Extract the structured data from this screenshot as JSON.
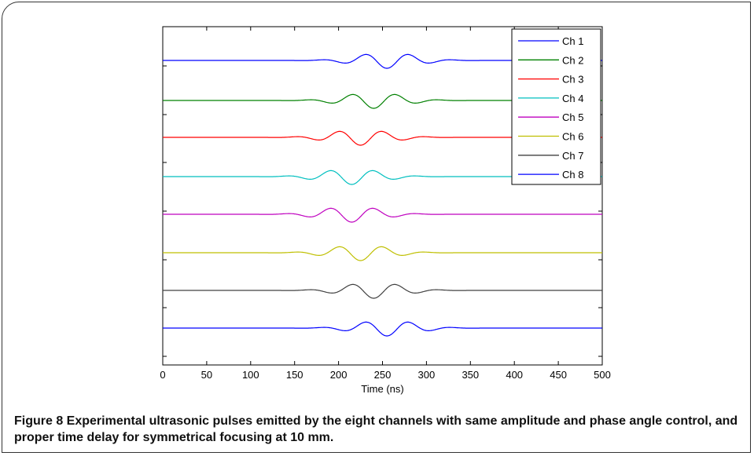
{
  "chart_data": {
    "type": "line",
    "xlabel": "Time (ns)",
    "xlim": [
      0,
      500
    ],
    "x_ticks": [
      "0",
      "50",
      "100",
      "150",
      "200",
      "250",
      "300",
      "350",
      "400",
      "450",
      "500"
    ],
    "y_ticks_labeled": false,
    "grid": false,
    "legend_placement": "top-right",
    "pulse_shape": "Gaussian-windowed sinusoid, ~20 MHz center frequency, ~5 cycles, normalized amplitude 1 for every channel",
    "series": [
      {
        "name": "Ch 1",
        "color": "#0000ff",
        "center_ns": 255,
        "amplitude": 1,
        "offset": 7
      },
      {
        "name": "Ch 2",
        "color": "#008000",
        "center_ns": 240,
        "amplitude": 1,
        "offset": 6
      },
      {
        "name": "Ch 3",
        "color": "#ff0000",
        "center_ns": 225,
        "amplitude": 1,
        "offset": 5
      },
      {
        "name": "Ch 4",
        "color": "#00bfbf",
        "center_ns": 215,
        "amplitude": 1,
        "offset": 4
      },
      {
        "name": "Ch 5",
        "color": "#bf00bf",
        "center_ns": 215,
        "amplitude": 1,
        "offset": 3
      },
      {
        "name": "Ch 6",
        "color": "#bfbf00",
        "center_ns": 225,
        "amplitude": 1,
        "offset": 2
      },
      {
        "name": "Ch 7",
        "color": "#404040",
        "center_ns": 240,
        "amplitude": 1,
        "offset": 1
      },
      {
        "name": "Ch 8",
        "color": "#0000ff",
        "center_ns": 255,
        "amplitude": 1,
        "offset": 0
      }
    ]
  },
  "caption": {
    "label": "Figure 8",
    "text": " Experimental ultrasonic pulses emitted by the eight channels with same amplitude and phase angle control, and proper time delay for symmetrical focusing at 10 mm."
  }
}
